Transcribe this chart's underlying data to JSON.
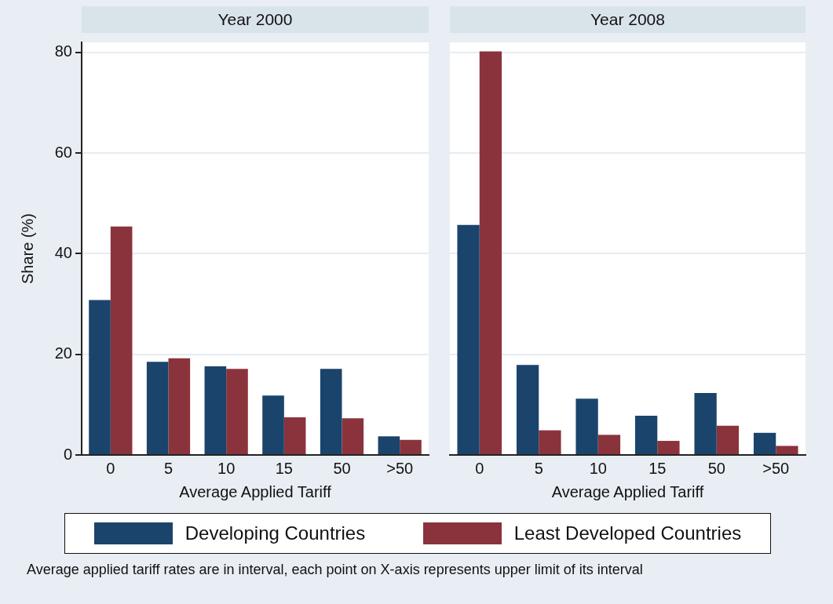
{
  "chart_data": [
    {
      "type": "bar",
      "title": "Year 2000",
      "xlabel": "Average Applied Tariff",
      "ylabel": "Share (%)",
      "categories": [
        "0",
        "5",
        "10",
        "15",
        "50",
        ">50"
      ],
      "series": [
        {
          "name": "Developing Countries",
          "color": "#1a446b",
          "values": [
            30.8,
            18.5,
            17.6,
            11.8,
            17.1,
            3.7
          ]
        },
        {
          "name": "Least Developed Countries",
          "color": "#8b333c",
          "values": [
            45.4,
            19.2,
            17.1,
            7.5,
            7.3,
            3.0
          ]
        }
      ],
      "ylim": [
        0,
        82
      ],
      "yticks": [
        0,
        20,
        40,
        60,
        80
      ],
      "grid": "y",
      "legend": "bottom",
      "annotations": [
        "Average applied tariff rates are in interval, each point on X-axis represents upper limit of its interval"
      ]
    },
    {
      "type": "bar",
      "title": "Year 2008",
      "xlabel": "Average Applied Tariff",
      "categories": [
        "0",
        "5",
        "10",
        "15",
        "50",
        ">50"
      ],
      "series": [
        {
          "color": "#1a446b",
          "values": [
            45.7,
            17.9,
            11.2,
            7.8,
            12.3,
            4.4
          ]
        },
        {
          "color": "#8b333c",
          "values": [
            80.2,
            4.9,
            4.0,
            2.8,
            5.8,
            1.8
          ]
        }
      ],
      "ylim": [
        0,
        82
      ],
      "yticks": [
        0,
        20,
        40,
        60,
        80
      ],
      "grid": "y",
      "tick_labels": "x"
    }
  ]
}
